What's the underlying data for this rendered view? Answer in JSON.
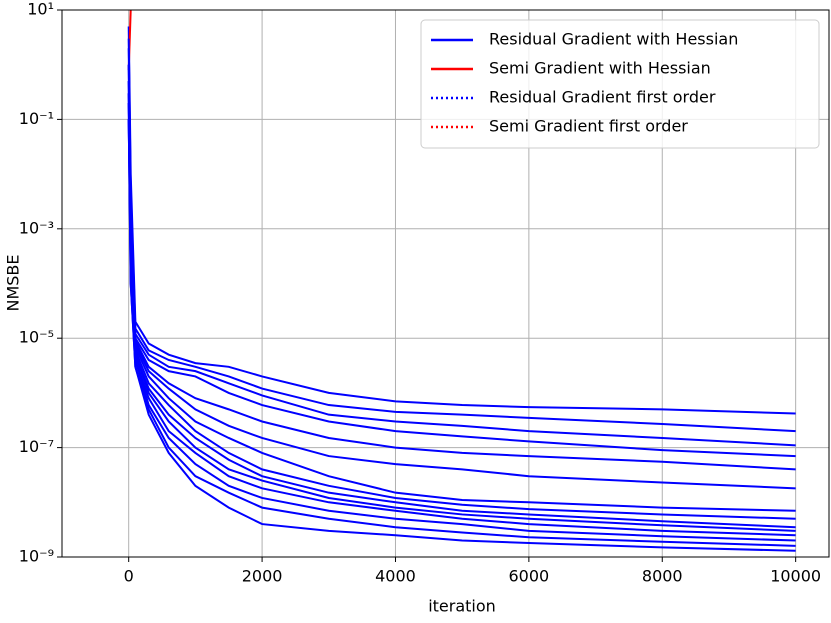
{
  "chart_data": {
    "type": "line",
    "xlabel": "iteration",
    "ylabel": "NMSBE",
    "log_y": true,
    "grid": true,
    "legend": "upper right",
    "xlim": [
      -1000,
      10500
    ],
    "xticks": [
      0,
      2000,
      4000,
      6000,
      8000,
      10000
    ],
    "ylim": [
      1e-09,
      10
    ],
    "yticks": [
      {
        "value": 10,
        "label": "10¹"
      },
      {
        "value": 0.1,
        "label": "10⁻¹"
      },
      {
        "value": 0.001,
        "label": "10⁻³"
      },
      {
        "value": 1e-05,
        "label": "10⁻⁵"
      },
      {
        "value": 1e-07,
        "label": "10⁻⁷"
      },
      {
        "value": 1e-09,
        "label": "10⁻⁹"
      }
    ],
    "x": [
      0,
      30,
      100,
      300,
      600,
      1000,
      1500,
      2000,
      3000,
      4000,
      5000,
      6000,
      8000,
      10000
    ],
    "series": [
      {
        "name": "Residual Gradient with Hessian",
        "color": "#0000ff",
        "style": "solid",
        "values": [
          5,
          0.01,
          2e-05,
          8e-06,
          5e-06,
          3.5e-06,
          3e-06,
          2e-06,
          1e-06,
          7e-07,
          6e-07,
          5.5e-07,
          5e-07,
          4.2e-07
        ]
      },
      {
        "name": "Semi Gradient with Hessian",
        "color": "#ff0000",
        "style": "solid",
        "values": [
          0.8,
          10,
          null,
          null,
          null,
          null,
          null,
          null,
          null,
          null,
          null,
          null,
          null,
          null
        ]
      },
      {
        "name": "Residual Gradient first order",
        "color": "#0000ff",
        "style": "dotted",
        "values": [
          null,
          null,
          null,
          null,
          null,
          null,
          null,
          null,
          null,
          null,
          null,
          null,
          null,
          null
        ]
      },
      {
        "name": "Semi Gradient first order",
        "color": "#ff0000",
        "style": "dotted",
        "values": [
          null,
          null,
          null,
          null,
          null,
          null,
          null,
          null,
          null,
          null,
          null,
          null,
          null,
          null
        ]
      },
      {
        "name": "Residual Gradient with Hessian",
        "color": "#0000ff",
        "style": "solid",
        "values": [
          3,
          0.005,
          1.5e-05,
          6e-06,
          4e-06,
          3e-06,
          2e-06,
          1.2e-06,
          6e-07,
          4.5e-07,
          4e-07,
          3.5e-07,
          2.7e-07,
          2e-07
        ]
      },
      {
        "name": "Residual Gradient with Hessian",
        "color": "#0000ff",
        "style": "solid",
        "values": [
          2,
          0.003,
          1.2e-05,
          5e-06,
          3e-06,
          2.5e-06,
          1.5e-06,
          9e-07,
          4e-07,
          3e-07,
          2.5e-07,
          2e-07,
          1.5e-07,
          1.1e-07
        ]
      },
      {
        "name": "Residual Gradient with Hessian",
        "color": "#0000ff",
        "style": "solid",
        "values": [
          1,
          0.002,
          1e-05,
          4e-06,
          2.5e-06,
          2e-06,
          1e-06,
          6e-07,
          3e-07,
          2e-07,
          1.6e-07,
          1.3e-07,
          9e-08,
          7e-08
        ]
      },
      {
        "name": "Residual Gradient with Hessian",
        "color": "#0000ff",
        "style": "solid",
        "values": [
          1,
          0.001,
          9e-06,
          3e-06,
          1.5e-06,
          8e-07,
          5e-07,
          3e-07,
          1.5e-07,
          1e-07,
          8e-08,
          7e-08,
          5.5e-08,
          4e-08
        ]
      },
      {
        "name": "Residual Gradient with Hessian",
        "color": "#0000ff",
        "style": "solid",
        "values": [
          0.5,
          0.001,
          8e-06,
          2.5e-06,
          1.2e-06,
          5e-07,
          2.5e-07,
          1.5e-07,
          7e-08,
          5e-08,
          4e-08,
          3e-08,
          2.3e-08,
          1.8e-08
        ]
      },
      {
        "name": "Residual Gradient with Hessian",
        "color": "#0000ff",
        "style": "solid",
        "values": [
          0.5,
          0.0005,
          7e-06,
          2e-06,
          8e-07,
          3e-07,
          1.5e-07,
          8e-08,
          3e-08,
          1.5e-08,
          1.1e-08,
          1e-08,
          8e-09,
          7e-09
        ]
      },
      {
        "name": "Residual Gradient with Hessian",
        "color": "#0000ff",
        "style": "solid",
        "values": [
          0.3,
          0.0005,
          6e-06,
          1.5e-06,
          6e-07,
          2e-07,
          8e-08,
          4e-08,
          2e-08,
          1.2e-08,
          9e-09,
          7.5e-09,
          6e-09,
          5e-09
        ]
      },
      {
        "name": "Residual Gradient with Hessian",
        "color": "#0000ff",
        "style": "solid",
        "values": [
          0.3,
          0.0003,
          5e-06,
          1.2e-06,
          4e-07,
          1.5e-07,
          6e-08,
          3e-08,
          1.5e-08,
          1e-08,
          7e-09,
          6e-09,
          4.5e-09,
          3.5e-09
        ]
      },
      {
        "name": "Residual Gradient with Hessian",
        "color": "#0000ff",
        "style": "solid",
        "values": [
          0.2,
          0.0003,
          5e-06,
          1e-06,
          3e-07,
          1e-07,
          4e-08,
          2.5e-08,
          1.2e-08,
          8e-09,
          6e-09,
          5e-09,
          3.8e-09,
          3e-09
        ]
      },
      {
        "name": "Residual Gradient with Hessian",
        "color": "#0000ff",
        "style": "solid",
        "values": [
          0.2,
          0.0002,
          4e-06,
          8e-07,
          2e-07,
          8e-08,
          3e-08,
          1.8e-08,
          1e-08,
          7e-09,
          5e-09,
          4e-09,
          3e-09,
          2.5e-09
        ]
      },
      {
        "name": "Residual Gradient with Hessian",
        "color": "#0000ff",
        "style": "solid",
        "values": [
          0.1,
          0.0002,
          4e-06,
          6e-07,
          1.5e-07,
          5e-08,
          2e-08,
          1.2e-08,
          7e-09,
          5e-09,
          4e-09,
          3e-09,
          2.4e-09,
          2e-09
        ]
      },
      {
        "name": "Residual Gradient with Hessian",
        "color": "#0000ff",
        "style": "solid",
        "values": [
          0.1,
          0.0001,
          3e-06,
          5e-07,
          1e-07,
          3e-08,
          1.5e-08,
          8e-09,
          5e-09,
          3.5e-09,
          2.8e-09,
          2.3e-09,
          1.9e-09,
          1.6e-09
        ]
      },
      {
        "name": "Residual Gradient with Hessian",
        "color": "#0000ff",
        "style": "solid",
        "values": [
          0.1,
          0.0001,
          3e-06,
          4e-07,
          8e-08,
          2e-08,
          8e-09,
          4e-09,
          3e-09,
          2.5e-09,
          2e-09,
          1.8e-09,
          1.5e-09,
          1.3e-09
        ]
      }
    ]
  }
}
